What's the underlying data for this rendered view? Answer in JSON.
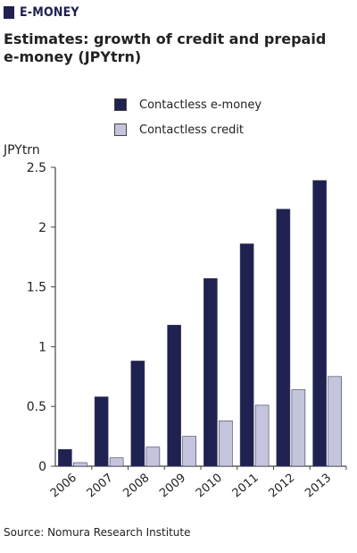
{
  "header": {
    "label": "E-MONEY"
  },
  "title": "Estimates: growth of credit and prepaid e-money (JPYtrn)",
  "source": "Source: Nomura Research Institute",
  "colors": {
    "navy": "#1f2150",
    "lilac": "#c4c4dc",
    "axis": "#444444"
  },
  "chart_data": {
    "type": "bar",
    "ylabel": "JPYtrn",
    "ylim": [
      0,
      2.5
    ],
    "yticks": [
      "0",
      "0.5",
      "1",
      "1.5",
      "2",
      "2.5"
    ],
    "categories": [
      "2006",
      "2007",
      "2008",
      "2009",
      "2010",
      "2011",
      "2012",
      "2013"
    ],
    "legend_position": "top",
    "grid": false,
    "series": [
      {
        "name": "Contactless e-money",
        "color": "#1f2150",
        "values": [
          0.14,
          0.58,
          0.88,
          1.18,
          1.57,
          1.86,
          2.15,
          2.39
        ]
      },
      {
        "name": "Contactless credit",
        "color": "#c4c4dc",
        "values": [
          0.03,
          0.07,
          0.16,
          0.25,
          0.38,
          0.51,
          0.64,
          0.75
        ]
      }
    ]
  }
}
